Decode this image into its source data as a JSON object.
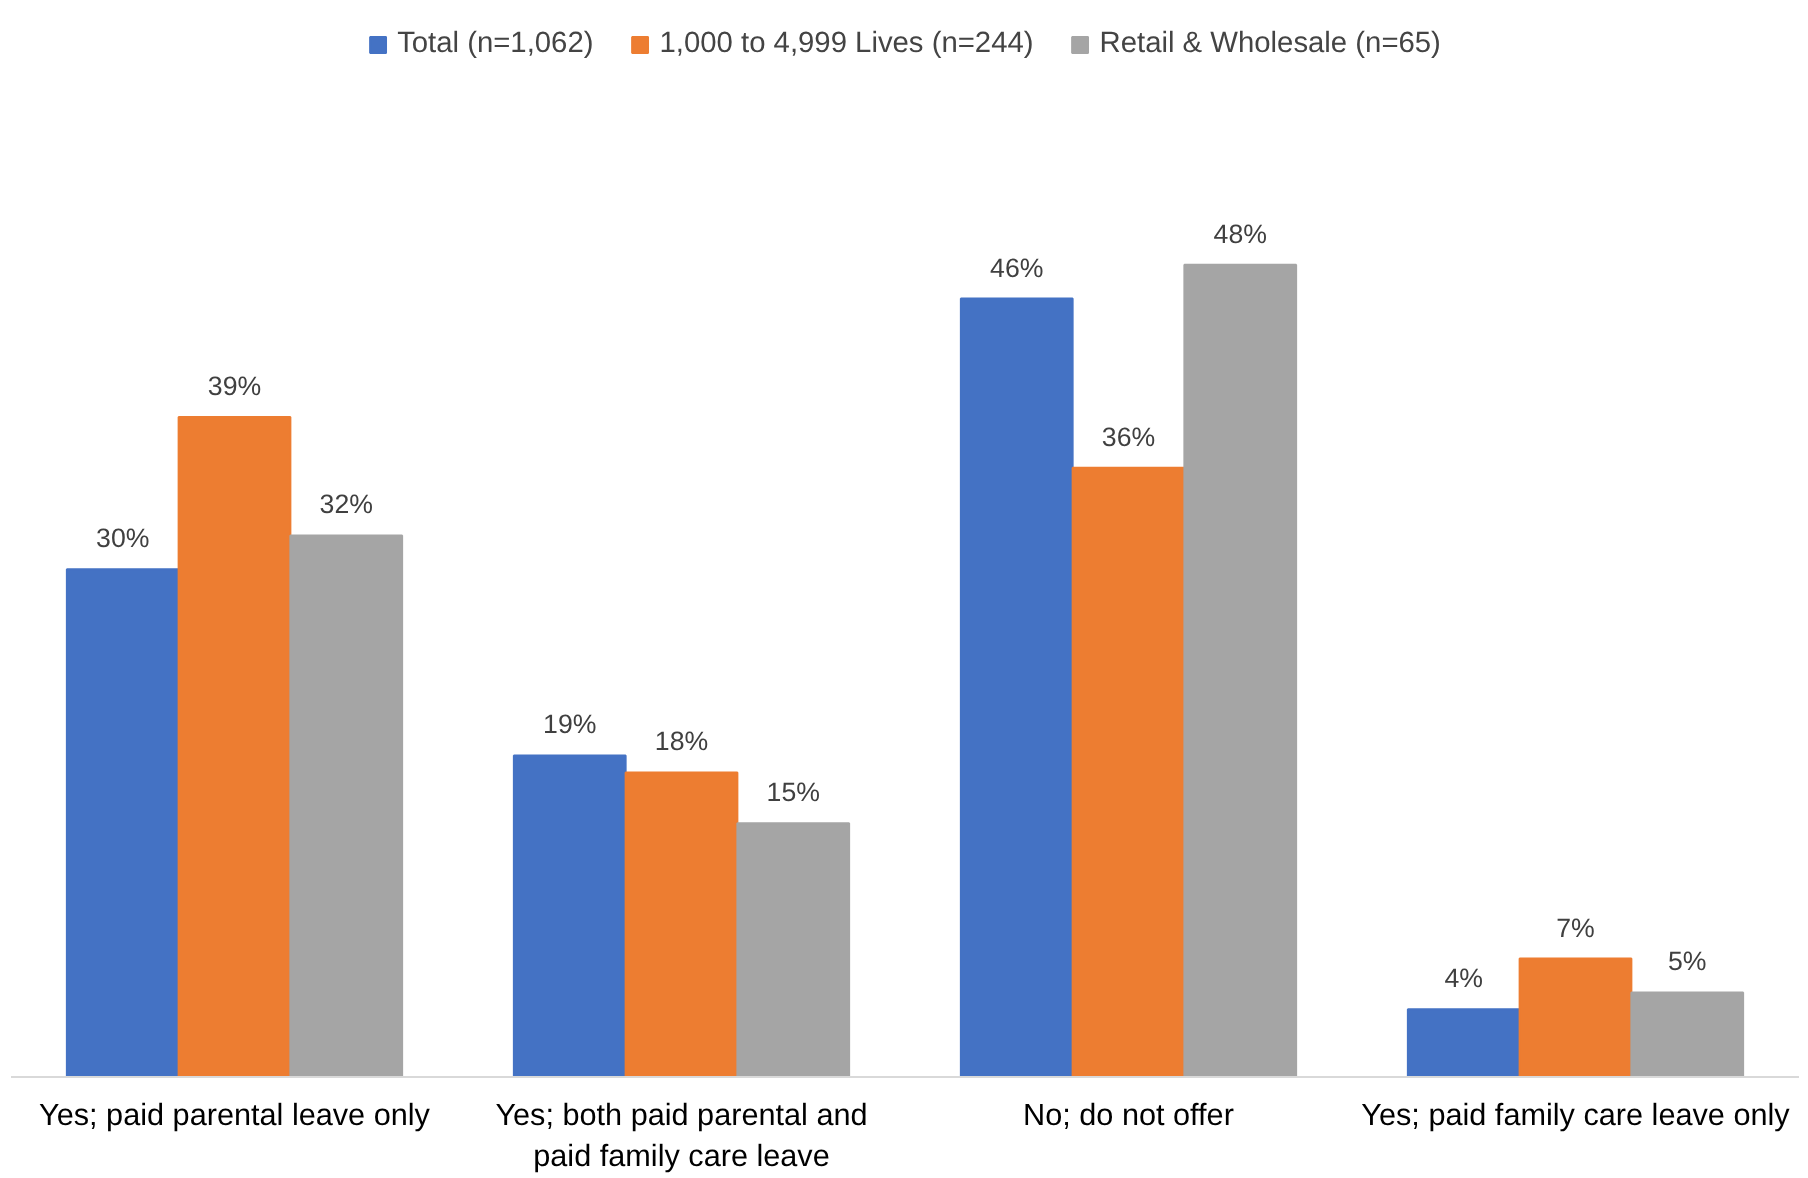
{
  "chart_data": {
    "type": "bar",
    "categories": [
      "Yes; paid parental leave only",
      "Yes; both paid parental and\npaid family care leave",
      "No; do not offer",
      "Yes; paid family care leave only"
    ],
    "series": [
      {
        "name": "Total (n=1,062)",
        "color": "#4472c4",
        "values": [
          30,
          19,
          46,
          4
        ],
        "value_labels": [
          "30%",
          "19%",
          "46%",
          "4%"
        ]
      },
      {
        "name": "1,000 to 4,999 Lives (n=244)",
        "color": "#ed7d31",
        "values": [
          39,
          18,
          36,
          7
        ],
        "value_labels": [
          "39%",
          "18%",
          "36%",
          "7%"
        ]
      },
      {
        "name": "Retail & Wholesale (n=65)",
        "color": "#a5a5a5",
        "values": [
          32,
          15,
          48,
          5
        ],
        "value_labels": [
          "32%",
          "15%",
          "48%",
          "5%"
        ]
      }
    ],
    "legend": "top",
    "grid": false
  }
}
